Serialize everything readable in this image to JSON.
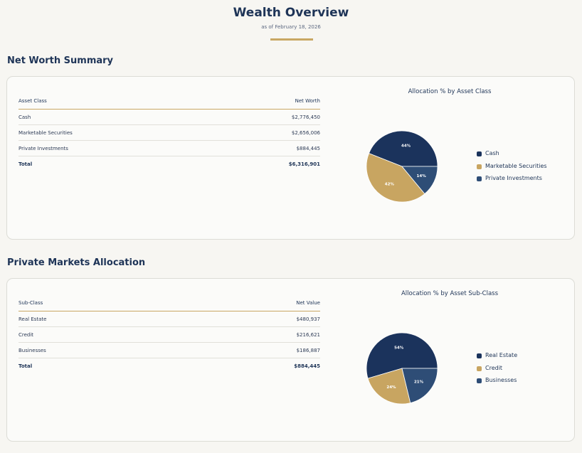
{
  "header": {
    "title": "Wealth Overview",
    "subtitle": "as of February 18, 2026"
  },
  "colors": {
    "navy": "#1b335c",
    "gold": "#c8a561",
    "slate": "#2e4d76",
    "accent_rule": "#c9a763"
  },
  "net_worth": {
    "section_title": "Net Worth Summary",
    "table": {
      "headers": [
        "Asset Class",
        "Net Worth"
      ],
      "rows": [
        [
          "Cash",
          "$2,776,450"
        ],
        [
          "Marketable Securities",
          "$2,656,006"
        ],
        [
          "Private Investments",
          "$884,445"
        ]
      ],
      "total": [
        "Total",
        "$6,316,901"
      ]
    },
    "chart_title": "Allocation % by Asset Class"
  },
  "private_markets": {
    "section_title": "Private Markets Allocation",
    "table": {
      "headers": [
        "Sub-Class",
        "Net Value"
      ],
      "rows": [
        [
          "Real Estate",
          "$480,937"
        ],
        [
          "Credit",
          "$216,621"
        ],
        [
          "Businesses",
          "$186,887"
        ]
      ],
      "total": [
        "Total",
        "$884,445"
      ]
    },
    "chart_title": "Allocation % by Asset Sub-Class"
  },
  "chart_data": [
    {
      "type": "pie",
      "title": "Allocation % by Asset Class",
      "categories": [
        "Cash",
        "Marketable Securities",
        "Private Investments"
      ],
      "values": [
        44,
        42,
        14
      ],
      "labels": [
        "44%",
        "42%",
        "14%"
      ],
      "colors": [
        "#1b335c",
        "#c8a561",
        "#2e4d76"
      ],
      "legend_position": "right"
    },
    {
      "type": "pie",
      "title": "Allocation % by Asset Sub-Class",
      "categories": [
        "Real Estate",
        "Credit",
        "Businesses"
      ],
      "values": [
        54,
        24,
        21
      ],
      "labels": [
        "54%",
        "24%",
        "21%"
      ],
      "colors": [
        "#1b335c",
        "#c8a561",
        "#2e4d76"
      ],
      "legend_position": "right"
    }
  ]
}
